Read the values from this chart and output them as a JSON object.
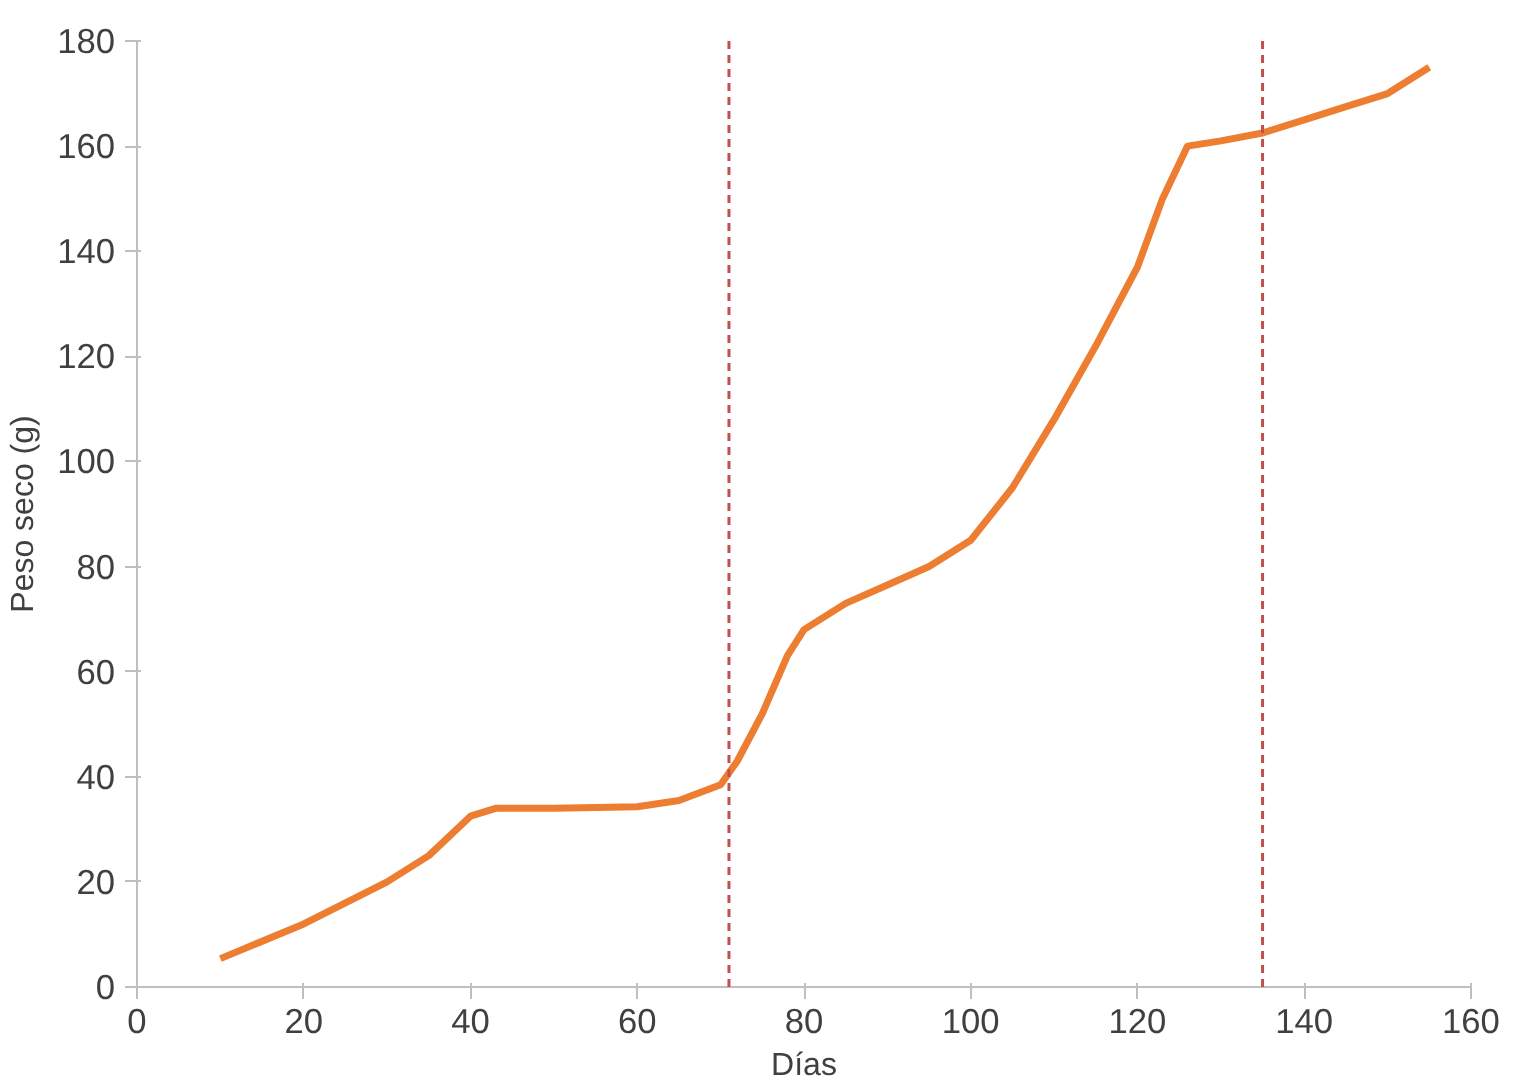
{
  "chart_data": {
    "type": "line",
    "xlabel": "Días",
    "ylabel": "Peso seco (g)",
    "x": [
      10,
      20,
      30,
      35,
      40,
      43,
      50,
      60,
      65,
      70,
      72,
      75,
      78,
      80,
      85,
      90,
      95,
      100,
      105,
      110,
      115,
      120,
      123,
      126,
      130,
      135,
      140,
      145,
      150,
      155
    ],
    "series": [
      {
        "color": "#ed7d31",
        "values": [
          5.4,
          12,
          20,
          25,
          32.5,
          34,
          34,
          34.3,
          35.5,
          38.5,
          43,
          52,
          63,
          68,
          73,
          76.5,
          80,
          85,
          95,
          108,
          122,
          137,
          150,
          160,
          161,
          162.5,
          165,
          167.5,
          170,
          175
        ]
      }
    ],
    "xlim": [
      0,
      160
    ],
    "xticks": [
      0,
      20,
      40,
      60,
      80,
      100,
      120,
      140,
      160
    ],
    "ylim": [
      0,
      180
    ],
    "yticks": [
      0,
      20,
      40,
      60,
      80,
      100,
      120,
      140,
      160,
      180
    ],
    "ref_lines": [
      {
        "axis": "x",
        "value": 71,
        "color": "#c0504d",
        "line_style": "dashed"
      },
      {
        "axis": "x",
        "value": 135,
        "color": "#c0504d",
        "line_style": "dashed"
      }
    ],
    "grid": false,
    "marker": "none",
    "line_style": "solid"
  }
}
